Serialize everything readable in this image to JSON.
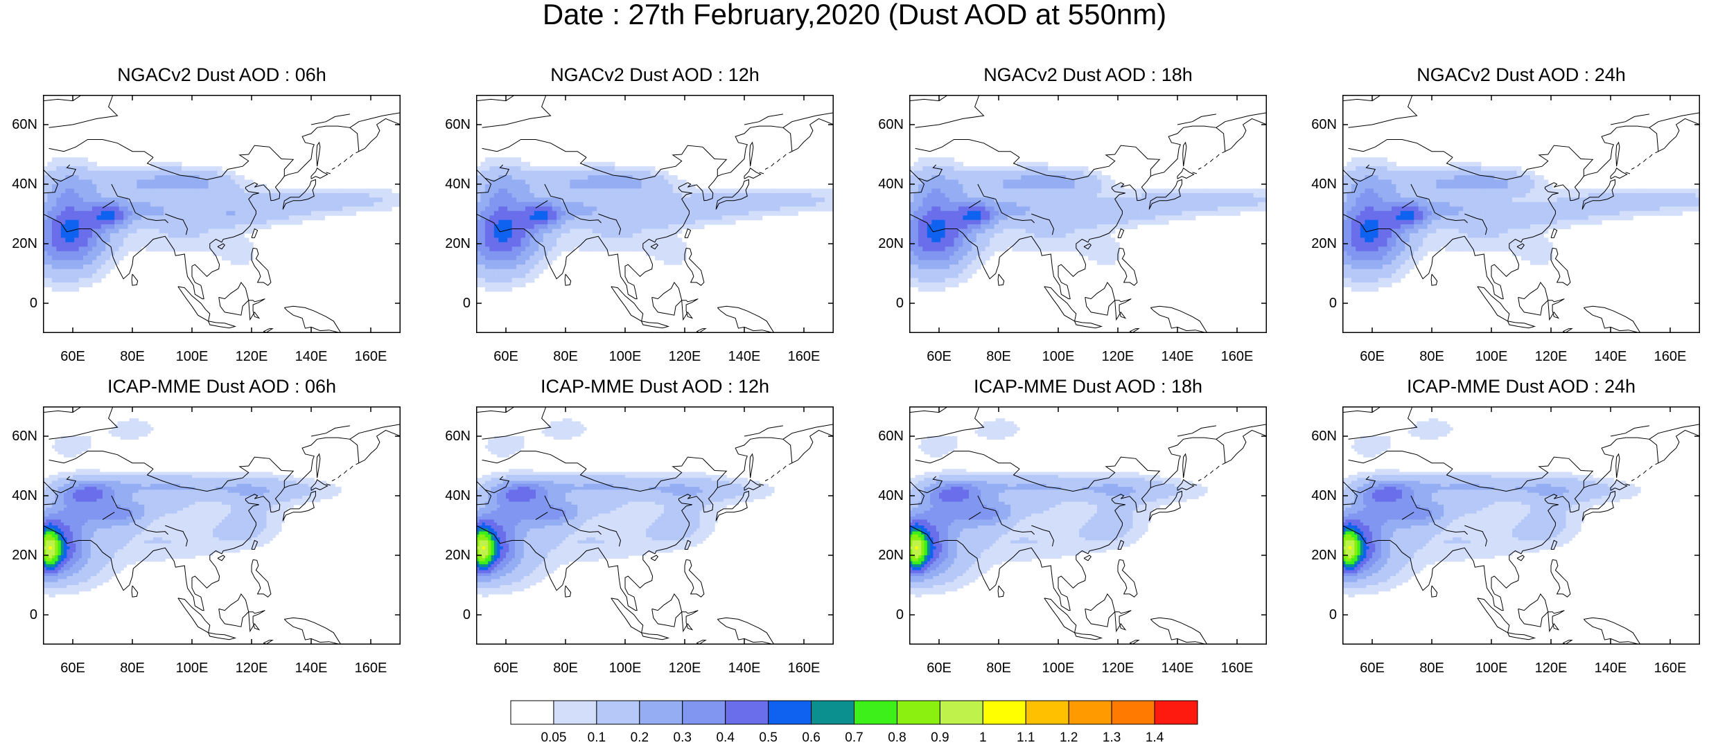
{
  "title": "Date : 27th February,2020 (Dust AOD at 550nm)",
  "panels": [
    {
      "title": "NGACv2 Dust AOD : 06h",
      "model": "NGACv2",
      "lead": "06h"
    },
    {
      "title": "NGACv2 Dust AOD : 12h",
      "model": "NGACv2",
      "lead": "12h"
    },
    {
      "title": "NGACv2 Dust AOD : 18h",
      "model": "NGACv2",
      "lead": "18h"
    },
    {
      "title": "NGACv2 Dust AOD : 24h",
      "model": "NGACv2",
      "lead": "24h"
    },
    {
      "title": "ICAP-MME Dust AOD : 06h",
      "model": "ICAP-MME",
      "lead": "06h"
    },
    {
      "title": "ICAP-MME Dust AOD : 12h",
      "model": "ICAP-MME",
      "lead": "12h"
    },
    {
      "title": "ICAP-MME Dust AOD : 18h",
      "model": "ICAP-MME",
      "lead": "18h"
    },
    {
      "title": "ICAP-MME Dust AOD : 24h",
      "model": "ICAP-MME",
      "lead": "24h"
    }
  ],
  "lat_ticks": [
    "60N",
    "40N",
    "20N",
    "0"
  ],
  "lon_ticks": [
    "60E",
    "80E",
    "100E",
    "120E",
    "140E",
    "160E"
  ],
  "colorbar": {
    "labels": [
      "0.05",
      "0.1",
      "0.2",
      "0.3",
      "0.4",
      "0.5",
      "0.6",
      "0.7",
      "0.8",
      "0.9",
      "1",
      "1.1",
      "1.2",
      "1.3",
      "1.4"
    ],
    "colors": [
      "#ffffff",
      "#d3defb",
      "#b5c8f7",
      "#95aef3",
      "#8196f0",
      "#6a6eea",
      "#0f62f0",
      "#0b8f8f",
      "#3ef01a",
      "#8bf010",
      "#c0f24c",
      "#ffff00",
      "#ffc000",
      "#ff9a00",
      "#ff7a00",
      "#ff1a0f"
    ]
  }
}
